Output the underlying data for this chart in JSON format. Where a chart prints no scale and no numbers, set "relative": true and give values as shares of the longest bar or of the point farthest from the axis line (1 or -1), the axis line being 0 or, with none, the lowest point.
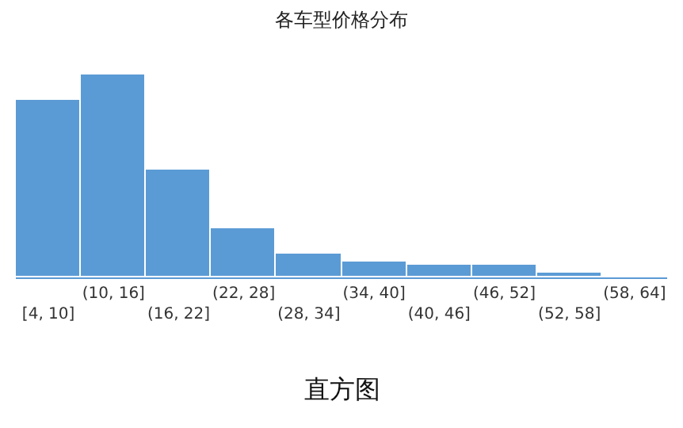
{
  "chart_data": {
    "type": "bar",
    "title": "各车型价格分布",
    "relative": true,
    "categories": [
      "[4, 10]",
      "(10, 16]",
      "(16, 22]",
      "(22, 28]",
      "(28, 34]",
      "(34, 40]",
      "(40, 46]",
      "(46, 52]",
      "(52, 58]",
      "(58, 64]"
    ],
    "values": [
      0.87,
      1,
      0.53,
      0.24,
      0.12,
      0.08,
      0.06,
      0.06,
      0.02,
      0.01
    ],
    "color": "#5b9bd5",
    "annotations": [
      "直方图"
    ]
  }
}
